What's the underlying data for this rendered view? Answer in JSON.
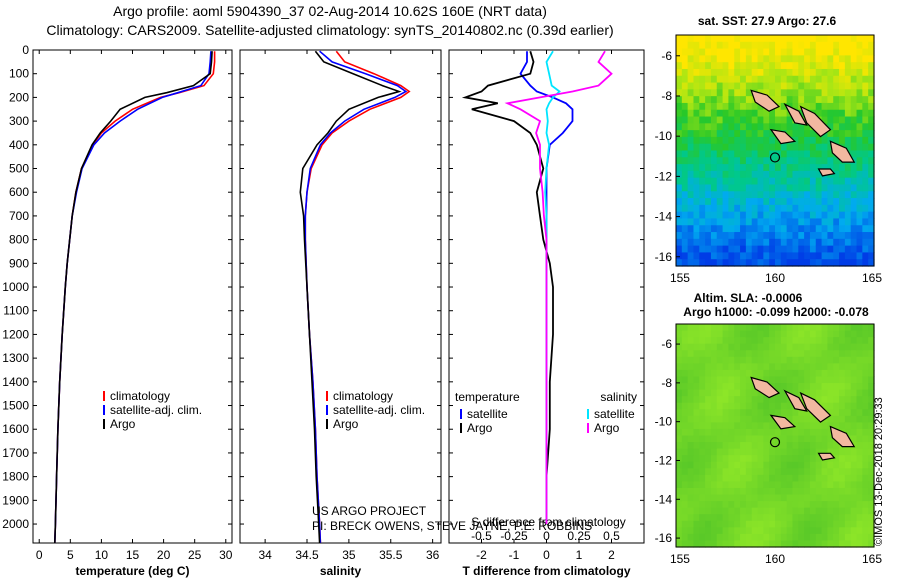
{
  "title": {
    "line1": "Argo profile: aoml 5904390_37 02-Aug-2014 10.62S 160E (NRT data)",
    "line2": "Climatology: CARS2009. Satellite-adjusted climatology: synTS_20140802.nc (0.39d earlier)"
  },
  "colors": {
    "clim": "#ff0000",
    "sat": "#0000ff",
    "argo": "#000000",
    "sal_sat": "#00e5ff",
    "sal_argo": "#ff00ff"
  },
  "depth_axis": {
    "ticks": [
      0,
      100,
      200,
      300,
      400,
      500,
      600,
      700,
      800,
      900,
      1000,
      1100,
      1200,
      1300,
      1400,
      1500,
      1600,
      1700,
      1800,
      1900,
      2000
    ],
    "range": [
      0,
      2080
    ]
  },
  "chart_data": [
    {
      "type": "line",
      "name": "temperature",
      "xlabel": "temperature (deg C)",
      "ylabel": "depth",
      "xlim": [
        -1,
        31
      ],
      "ylim": [
        0,
        2080
      ],
      "xticks": [
        0,
        5,
        10,
        15,
        20,
        25,
        30
      ],
      "legend": [
        "climatology",
        "satellite-adj. clim.",
        "Argo"
      ],
      "depth": [
        5,
        50,
        100,
        150,
        180,
        200,
        250,
        300,
        350,
        400,
        500,
        600,
        700,
        800,
        900,
        1000,
        1200,
        1400,
        1600,
        1800,
        2000,
        2080
      ],
      "series": [
        {
          "name": "climatology",
          "values": [
            28.2,
            28.2,
            28.0,
            26.5,
            22.5,
            19.5,
            15.0,
            12.2,
            10.0,
            8.6,
            6.8,
            5.9,
            5.3,
            4.9,
            4.5,
            4.2,
            3.7,
            3.3,
            3.0,
            2.8,
            2.6,
            2.5
          ]
        },
        {
          "name": "satellite-adj. clim.",
          "values": [
            27.6,
            27.5,
            27.3,
            26.0,
            22.3,
            19.8,
            15.8,
            13.0,
            10.5,
            8.8,
            6.9,
            6.0,
            5.3,
            4.9,
            4.5,
            4.2,
            3.7,
            3.3,
            3.0,
            2.8,
            2.6,
            2.5
          ]
        },
        {
          "name": "Argo",
          "values": [
            27.8,
            27.7,
            27.5,
            24.8,
            20.5,
            17.0,
            13.0,
            11.5,
            9.8,
            8.5,
            6.8,
            5.9,
            5.3,
            4.9,
            4.5,
            4.2,
            3.7,
            3.3,
            3.0,
            2.8,
            2.6,
            2.5
          ]
        }
      ]
    },
    {
      "type": "line",
      "name": "salinity",
      "xlabel": "salinity",
      "ylabel": "depth",
      "xlim": [
        33.7,
        36.1
      ],
      "ylim": [
        0,
        2080
      ],
      "xticks": [
        34,
        34.5,
        35,
        35.5,
        36
      ],
      "legend": [
        "climatology",
        "satellite-adj. clim.",
        "Argo"
      ],
      "annotations": [
        "US ARGO PROJECT",
        "PI: BRECK OWENS, STEVE JAYNE, P.E. ROBBINS"
      ],
      "depth": [
        5,
        50,
        100,
        150,
        175,
        200,
        250,
        300,
        350,
        400,
        500,
        600,
        700,
        800,
        1000,
        1200,
        1400,
        1600,
        1800,
        2000,
        2080
      ],
      "series": [
        {
          "name": "climatology",
          "values": [
            34.85,
            34.95,
            35.3,
            35.62,
            35.72,
            35.62,
            35.25,
            35.0,
            34.8,
            34.68,
            34.55,
            34.5,
            34.48,
            34.48,
            34.5,
            34.53,
            34.57,
            34.6,
            34.62,
            34.65,
            34.66
          ]
        },
        {
          "name": "satellite-adj. clim.",
          "values": [
            34.65,
            34.8,
            35.2,
            35.58,
            35.68,
            35.55,
            35.18,
            34.95,
            34.78,
            34.66,
            34.54,
            34.5,
            34.48,
            34.48,
            34.5,
            34.53,
            34.57,
            34.6,
            34.62,
            34.65,
            34.66
          ]
        },
        {
          "name": "Argo",
          "values": [
            34.6,
            34.7,
            35.05,
            35.4,
            35.6,
            35.35,
            35.0,
            34.85,
            34.75,
            34.62,
            34.45,
            34.42,
            34.46,
            34.47,
            34.5,
            34.53,
            34.56,
            34.59,
            34.61,
            34.64,
            34.65
          ]
        }
      ]
    },
    {
      "type": "line",
      "name": "difference from climatology",
      "xlabel": "T difference from climatology",
      "x2label": "S difference from climatology",
      "xlim": [
        -3,
        3
      ],
      "x2lim": [
        -0.75,
        0.75
      ],
      "ylim": [
        0,
        2080
      ],
      "xticks": [
        -2,
        -1,
        0,
        1,
        2
      ],
      "x2ticks": [
        "-0.5",
        "-0.25",
        "0",
        "0.25",
        "0.5"
      ],
      "legend_temperature": {
        "title": "temperature",
        "items": [
          "satellite",
          "Argo"
        ]
      },
      "legend_salinity": {
        "title": "salinity",
        "items": [
          "satellite",
          "Argo"
        ]
      },
      "depth": [
        5,
        50,
        100,
        150,
        175,
        200,
        225,
        250,
        300,
        350,
        400,
        500,
        600,
        700,
        800,
        900,
        1000,
        1200,
        1400,
        1600,
        1800,
        2000
      ],
      "series": [
        {
          "name": "T satellite",
          "axis": "T",
          "values": [
            -0.6,
            -0.6,
            -0.8,
            -0.5,
            -0.3,
            0.2,
            0.6,
            0.8,
            0.8,
            0.5,
            0.1,
            0.0,
            0.0,
            0.0,
            0.0,
            0.0,
            0.0,
            0.0,
            0.0,
            0.0,
            0.0,
            0.0
          ]
        },
        {
          "name": "T Argo",
          "axis": "T",
          "values": [
            -0.5,
            -0.4,
            -0.5,
            -1.8,
            -2.0,
            -2.5,
            -1.5,
            -2.3,
            -1.0,
            -0.5,
            -0.3,
            -0.1,
            -0.3,
            -0.2,
            -0.1,
            0.1,
            0.2,
            0.2,
            0.1,
            0.1,
            0.0,
            0.0
          ]
        },
        {
          "name": "S satellite",
          "axis": "S",
          "values": [
            0.05,
            0.0,
            0.02,
            0.04,
            0.1,
            0.05,
            0.02,
            0.0,
            0.01,
            0.0,
            0.02,
            0.0,
            -0.01,
            0.0,
            0.0,
            0.0,
            0.0,
            0.0,
            0.0,
            0.0,
            0.0,
            0.0
          ]
        },
        {
          "name": "S Argo",
          "axis": "S",
          "values": [
            0.45,
            0.4,
            0.5,
            0.4,
            0.2,
            -0.05,
            -0.3,
            -0.2,
            -0.05,
            -0.08,
            -0.05,
            -0.05,
            -0.03,
            -0.02,
            0.0,
            0.0,
            0.0,
            0.0,
            0.0,
            0.0,
            0.0,
            0.0
          ]
        }
      ]
    }
  ],
  "map_sst": {
    "title": "sat. SST: 27.9 Argo: 27.6",
    "xticks": [
      "155",
      "160",
      "165"
    ],
    "yticks": [
      "-6",
      "-8",
      "-10",
      "-12",
      "-14",
      "-16"
    ]
  },
  "map_sla": {
    "title1": "Altim. SLA: -0.0006",
    "title2": "Argo h1000: -0.099 h2000: -0.078",
    "xticks": [
      "155",
      "160",
      "165"
    ],
    "yticks": [
      "-6",
      "-8",
      "-10",
      "-12",
      "-14",
      "-16"
    ]
  },
  "credit": "©IMOS 13-Dec-2018 20:29:33"
}
